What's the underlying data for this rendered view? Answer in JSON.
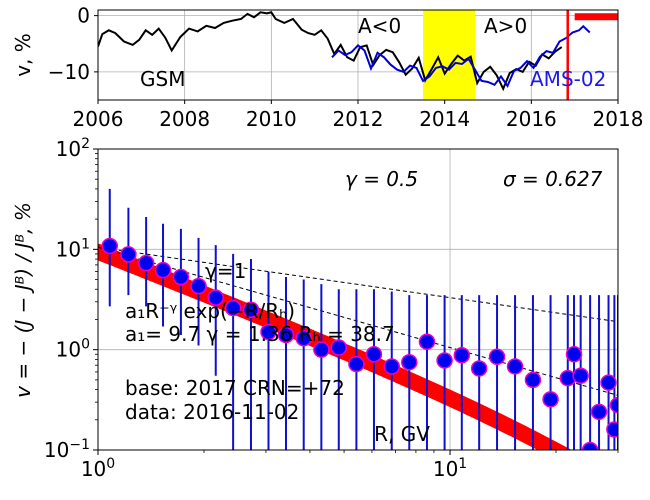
{
  "chart_data": [
    {
      "type": "line",
      "ylabel": "v, %",
      "xlim": [
        2006,
        2018
      ],
      "ylim": [
        -15,
        1
      ],
      "x_ticks": [
        "2006",
        "2008",
        "2010",
        "2012",
        "2014",
        "2016",
        "2018"
      ],
      "y_ticks": [
        "0",
        "−10"
      ],
      "grid": true,
      "annotations": {
        "gsm": "GSM",
        "a_neg": "A<0",
        "a_pos": "A>0",
        "ams": "AMS-02"
      },
      "shaded_region": {
        "x": [
          2013.5,
          2014.7
        ],
        "color": "#ffff00"
      },
      "marker_line": {
        "x": 2016.84,
        "color": "#ff0000"
      },
      "marker_bar": {
        "x": [
          2017.0,
          2018.0
        ],
        "y": -0.2,
        "color": "#ff0000"
      },
      "series": [
        {
          "color": "#000000",
          "points": [
            [
              2006.0,
              -5.5
            ],
            [
              2006.1,
              -3.3
            ],
            [
              2006.25,
              -2.6
            ],
            [
              2006.4,
              -3.1
            ],
            [
              2006.6,
              -4.6
            ],
            [
              2006.8,
              -5.2
            ],
            [
              2006.95,
              -4.3
            ],
            [
              2007.1,
              -2.6
            ],
            [
              2007.25,
              -3.4
            ],
            [
              2007.4,
              -2.3
            ],
            [
              2007.55,
              -3.9
            ],
            [
              2007.7,
              -6.2
            ],
            [
              2007.9,
              -3.8
            ],
            [
              2008.1,
              -2.3
            ],
            [
              2008.3,
              -2.8
            ],
            [
              2008.5,
              -1.8
            ],
            [
              2008.7,
              -2.2
            ],
            [
              2008.9,
              -1.3
            ],
            [
              2009.1,
              -0.9
            ],
            [
              2009.3,
              -0.6
            ],
            [
              2009.45,
              0.3
            ],
            [
              2009.6,
              -0.3
            ],
            [
              2009.75,
              0.6
            ],
            [
              2009.9,
              0.4
            ],
            [
              2010.0,
              0.6
            ],
            [
              2010.1,
              -0.6
            ],
            [
              2010.3,
              -1.3
            ],
            [
              2010.5,
              -0.6
            ],
            [
              2010.7,
              -2.5
            ],
            [
              2010.85,
              -3.1
            ],
            [
              2011.0,
              -3.4
            ],
            [
              2011.15,
              -2.6
            ],
            [
              2011.3,
              -4.1
            ],
            [
              2011.45,
              -6.8
            ],
            [
              2011.6,
              -5.2
            ],
            [
              2011.75,
              -7.4
            ],
            [
              2011.9,
              -8.0
            ],
            [
              2012.05,
              -5.6
            ],
            [
              2012.2,
              -5.3
            ],
            [
              2012.35,
              -8.8
            ],
            [
              2012.5,
              -7.0
            ],
            [
              2012.65,
              -6.1
            ],
            [
              2012.8,
              -6.5
            ],
            [
              2012.95,
              -8.3
            ],
            [
              2013.1,
              -10.5
            ],
            [
              2013.25,
              -9.4
            ],
            [
              2013.4,
              -7.5
            ],
            [
              2013.55,
              -11.5
            ],
            [
              2013.7,
              -9.5
            ],
            [
              2013.85,
              -7.4
            ],
            [
              2014.0,
              -10.3
            ],
            [
              2014.15,
              -8.6
            ],
            [
              2014.3,
              -7.1
            ],
            [
              2014.45,
              -8.0
            ],
            [
              2014.6,
              -7.3
            ],
            [
              2014.75,
              -12.0
            ],
            [
              2014.9,
              -10.0
            ],
            [
              2015.05,
              -9.1
            ],
            [
              2015.2,
              -10.6
            ],
            [
              2015.35,
              -13.0
            ],
            [
              2015.5,
              -10.2
            ],
            [
              2015.65,
              -9.5
            ],
            [
              2015.8,
              -10.0
            ],
            [
              2015.95,
              -8.2
            ],
            [
              2016.1,
              -8.9
            ],
            [
              2016.25,
              -6.9
            ],
            [
              2016.4,
              -7.6
            ],
            [
              2016.55,
              -6.4
            ],
            [
              2016.7,
              -5.6
            ]
          ]
        },
        {
          "color": "#0000dd",
          "points": [
            [
              2011.4,
              -7.4
            ],
            [
              2011.55,
              -6.2
            ],
            [
              2011.7,
              -7.0
            ],
            [
              2011.85,
              -6.5
            ],
            [
              2012.0,
              -5.3
            ],
            [
              2012.15,
              -6.2
            ],
            [
              2012.3,
              -9.4
            ],
            [
              2012.45,
              -6.6
            ],
            [
              2012.6,
              -7.4
            ],
            [
              2012.75,
              -8.7
            ],
            [
              2012.9,
              -9.6
            ],
            [
              2013.05,
              -10.0
            ],
            [
              2013.2,
              -8.9
            ],
            [
              2013.35,
              -9.3
            ],
            [
              2013.5,
              -11.6
            ],
            [
              2013.65,
              -10.8
            ],
            [
              2013.8,
              -9.3
            ],
            [
              2013.95,
              -9.0
            ],
            [
              2014.1,
              -9.6
            ],
            [
              2014.25,
              -8.4
            ],
            [
              2014.4,
              -8.6
            ],
            [
              2014.55,
              -7.7
            ],
            [
              2014.7,
              -9.6
            ],
            [
              2014.85,
              -11.6
            ],
            [
              2015.0,
              -11.8
            ],
            [
              2015.15,
              -12.3
            ],
            [
              2015.3,
              -10.8
            ],
            [
              2015.45,
              -12.5
            ],
            [
              2015.6,
              -9.8
            ],
            [
              2015.75,
              -9.3
            ],
            [
              2015.9,
              -8.1
            ],
            [
              2016.05,
              -9.3
            ],
            [
              2016.2,
              -7.3
            ],
            [
              2016.35,
              -6.3
            ],
            [
              2016.5,
              -6.6
            ],
            [
              2016.65,
              -4.6
            ],
            [
              2016.8,
              -4.0
            ],
            [
              2016.95,
              -3.0
            ],
            [
              2017.1,
              -2.6
            ],
            [
              2017.2,
              -1.9
            ],
            [
              2017.35,
              -3.0
            ]
          ]
        }
      ]
    },
    {
      "type": "scatter",
      "xscale": "log",
      "yscale": "log",
      "xlim": [
        1,
        30
      ],
      "ylim": [
        0.1,
        100
      ],
      "x_ticks": [
        {
          "v": 1,
          "base": "10",
          "exp": "0"
        },
        {
          "v": 10,
          "base": "10",
          "exp": "1"
        }
      ],
      "y_ticks": [
        {
          "v": 0.1,
          "base": "10",
          "exp": "−1"
        },
        {
          "v": 1,
          "base": "10",
          "exp": "0"
        },
        {
          "v": 10,
          "base": "10",
          "exp": "1"
        },
        {
          "v": 100,
          "base": "10",
          "exp": "2"
        }
      ],
      "grid": true,
      "gamma_label": "γ = 0.5",
      "sigma_label": "σ = 0.627",
      "gamma1_label": "γ=1",
      "formula_line1": "a₁R⁻ᵞ exp(−R/Rₕ)",
      "formula_line2": "a₁= 9.7   γ = 1.36   Rₕ = 38.7",
      "base_text": "base: 2017   CRN=+72",
      "data_text": "data: 2016-11-02",
      "xlabel": "R, GV",
      "ylabel_text": "v = − (J − Jᴮ) / Jᴮ, %",
      "fit": {
        "a1": 9.7,
        "gamma": 1.36,
        "Rh": 38.7,
        "color": "#ff0000"
      },
      "ref_lines": [
        {
          "points": [
            [
              1.0,
              10.5
            ],
            [
              30.0,
              0.35
            ]
          ]
        },
        {
          "points": [
            [
              1.0,
              10.5
            ],
            [
              30.0,
              1.9
            ]
          ]
        }
      ],
      "points": [
        {
          "x": 1.08,
          "y": 10.8,
          "lo": 2.7,
          "hi": 40
        },
        {
          "x": 1.22,
          "y": 8.9,
          "lo": 3.5,
          "hi": 26
        },
        {
          "x": 1.37,
          "y": 7.3,
          "lo": 2.7,
          "hi": 21
        },
        {
          "x": 1.53,
          "y": 6.2,
          "lo": 1.7,
          "hi": 18
        },
        {
          "x": 1.72,
          "y": 5.3,
          "lo": 1.4,
          "hi": 16
        },
        {
          "x": 1.93,
          "y": 4.3,
          "lo": 1.1,
          "hi": 13
        },
        {
          "x": 2.16,
          "y": 3.3,
          "lo": 0.55,
          "hi": 11
        },
        {
          "x": 2.42,
          "y": 2.6,
          "lo": 0.1,
          "hi": 9
        },
        {
          "x": 2.72,
          "y": 2.5,
          "lo": 0.1,
          "hi": 8
        },
        {
          "x": 3.05,
          "y": 1.5,
          "lo": 0.1,
          "hi": 6
        },
        {
          "x": 3.42,
          "y": 1.4,
          "lo": 0.1,
          "hi": 5.3
        },
        {
          "x": 3.84,
          "y": 1.3,
          "lo": 0.1,
          "hi": 5
        },
        {
          "x": 4.31,
          "y": 1.0,
          "lo": 0.1,
          "hi": 4.5
        },
        {
          "x": 4.83,
          "y": 1.05,
          "lo": 0.1,
          "hi": 4
        },
        {
          "x": 5.42,
          "y": 0.72,
          "lo": 0.1,
          "hi": 4
        },
        {
          "x": 6.08,
          "y": 0.9,
          "lo": 0.1,
          "hi": 4
        },
        {
          "x": 6.83,
          "y": 0.68,
          "lo": 0.1,
          "hi": 3.8
        },
        {
          "x": 7.66,
          "y": 0.75,
          "lo": 0.1,
          "hi": 3.5
        },
        {
          "x": 8.6,
          "y": 1.2,
          "lo": 0.1,
          "hi": 3.5
        },
        {
          "x": 9.65,
          "y": 0.78,
          "lo": 0.1,
          "hi": 3.5
        },
        {
          "x": 10.8,
          "y": 0.88,
          "lo": 0.1,
          "hi": 3.5
        },
        {
          "x": 12.1,
          "y": 0.65,
          "lo": 0.1,
          "hi": 3.5
        },
        {
          "x": 13.6,
          "y": 0.85,
          "lo": 0.1,
          "hi": 3.5
        },
        {
          "x": 15.3,
          "y": 0.68,
          "lo": 0.1,
          "hi": 3.5
        },
        {
          "x": 17.2,
          "y": 0.5,
          "lo": 0.1,
          "hi": 3.5
        },
        {
          "x": 19.3,
          "y": 0.32,
          "lo": 0.1,
          "hi": 3.5
        },
        {
          "x": 21.6,
          "y": 0.52,
          "lo": 0.1,
          "hi": 3.5
        },
        {
          "x": 22.5,
          "y": 0.9,
          "lo": 0.1,
          "hi": 3.5
        },
        {
          "x": 23.5,
          "y": 0.55,
          "lo": 0.1,
          "hi": 3.5
        },
        {
          "x": 25.0,
          "y": 0.1,
          "lo": 0.1,
          "hi": 3.5
        },
        {
          "x": 26.5,
          "y": 0.24,
          "lo": 0.1,
          "hi": 3.5
        },
        {
          "x": 28.2,
          "y": 0.47,
          "lo": 0.1,
          "hi": 3.5
        },
        {
          "x": 30.0,
          "y": 0.28,
          "lo": 0.1,
          "hi": 3.5
        },
        {
          "x": 29.3,
          "y": 0.16,
          "lo": 0.1,
          "hi": 3.5
        }
      ]
    }
  ]
}
